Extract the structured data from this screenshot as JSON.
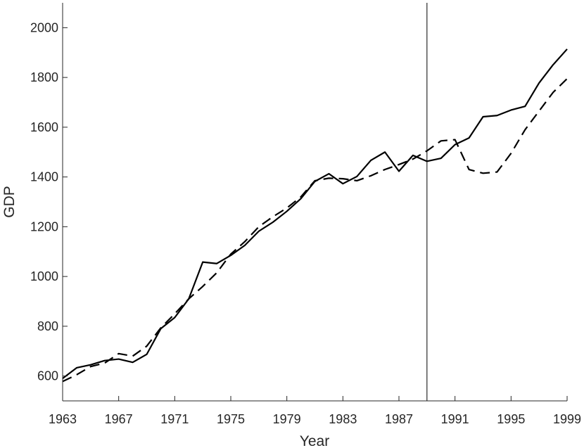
{
  "chart_data": {
    "type": "line",
    "title": "",
    "xlabel": "Year",
    "ylabel": "GDP",
    "xlim": [
      1963,
      1999
    ],
    "ylim": [
      500,
      2100
    ],
    "xticks": [
      1963,
      1967,
      1971,
      1975,
      1979,
      1983,
      1987,
      1991,
      1995,
      1999
    ],
    "xtick_labels": [
      "1963",
      "1967",
      "1971",
      "1975",
      "1979",
      "1983",
      "1987",
      "1991",
      "1995",
      "1999"
    ],
    "yticks": [
      600,
      800,
      1000,
      1200,
      1400,
      1600,
      1800,
      2000
    ],
    "ytick_labels": [
      "600",
      "800",
      "1000",
      "1200",
      "1400",
      "1600",
      "1800",
      "2000"
    ],
    "grid": false,
    "legend": "none",
    "vertical_reference_x": 1989,
    "x": [
      1963,
      1964,
      1965,
      1966,
      1967,
      1968,
      1969,
      1970,
      1971,
      1972,
      1973,
      1974,
      1975,
      1976,
      1977,
      1978,
      1979,
      1980,
      1981,
      1982,
      1983,
      1984,
      1985,
      1986,
      1987,
      1988,
      1989,
      1990,
      1991,
      1992,
      1993,
      1994,
      1995,
      1996,
      1997,
      1998,
      1999
    ],
    "series": [
      {
        "style": "solid",
        "color": "#000000",
        "values": [
          590,
          633,
          645,
          662,
          668,
          655,
          687,
          790,
          835,
          910,
          1058,
          1052,
          1085,
          1125,
          1182,
          1218,
          1262,
          1313,
          1382,
          1413,
          1373,
          1402,
          1467,
          1500,
          1423,
          1487,
          1463,
          1475,
          1530,
          1557,
          1642,
          1647,
          1669,
          1684,
          1778,
          1851,
          1914
        ]
      },
      {
        "style": "dashed",
        "color": "#000000",
        "values": [
          578,
          605,
          638,
          652,
          690,
          680,
          720,
          793,
          850,
          910,
          960,
          1015,
          1090,
          1140,
          1200,
          1240,
          1275,
          1320,
          1385,
          1395,
          1393,
          1385,
          1405,
          1430,
          1450,
          1472,
          1505,
          1545,
          1550,
          1430,
          1415,
          1420,
          1495,
          1590,
          1665,
          1740,
          1795
        ]
      }
    ]
  }
}
